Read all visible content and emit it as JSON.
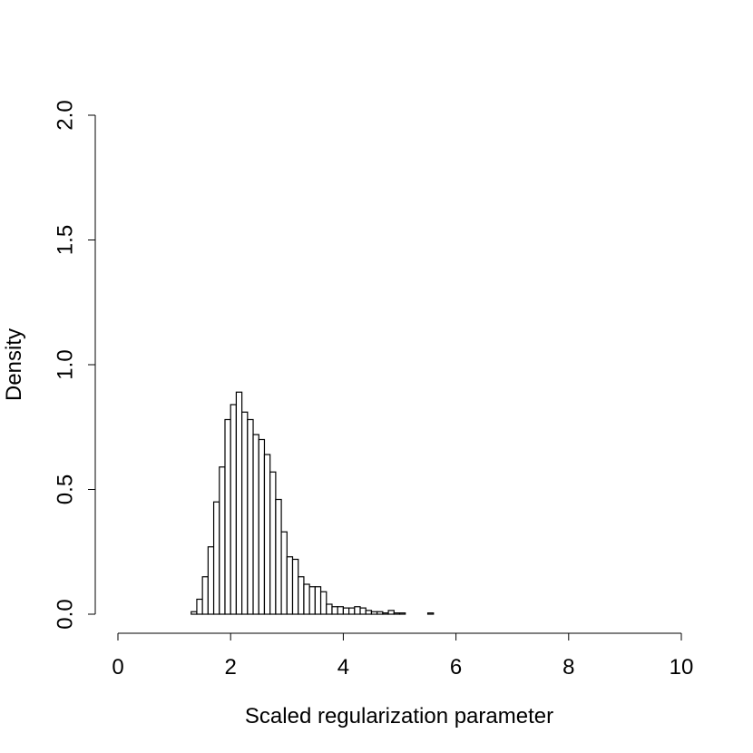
{
  "chart_data": {
    "type": "histogram",
    "x_label": "Scaled regularization parameter",
    "y_label": "Density",
    "bins": [
      0,
      0.1,
      0.2,
      0.3,
      0.4,
      0.5,
      0.6,
      0.7,
      0.8,
      0.9,
      1,
      1.1,
      1.2,
      1.3,
      1.4,
      1.5,
      1.6,
      1.7,
      1.8,
      1.9,
      2,
      2.1,
      2.2,
      2.3,
      2.4,
      2.5,
      2.6,
      2.7,
      2.8,
      2.9,
      3,
      3.1,
      3.2,
      3.3,
      3.4,
      3.5,
      3.6,
      3.7,
      3.8,
      3.9,
      4,
      4.1,
      4.2,
      4.3,
      4.4,
      4.5,
      4.6,
      4.7,
      4.8,
      4.9,
      5,
      5.1,
      5.2,
      5.3,
      5.4,
      5.5,
      5.6,
      5.7,
      5.8,
      5.9,
      6,
      6.1,
      6.2,
      6.3,
      6.4,
      6.5,
      6.6,
      6.7,
      6.8,
      6.9,
      7,
      7.1,
      7.2,
      7.3,
      7.4,
      7.5,
      7.6,
      7.7,
      7.8,
      7.9,
      8,
      8.1,
      8.2,
      8.3,
      8.4,
      8.5,
      8.6,
      8.7,
      8.8,
      8.9,
      9,
      9.1,
      9.2,
      9.3,
      9.4,
      9.5,
      9.6,
      9.7,
      9.8,
      9.9,
      10
    ],
    "values": [
      0,
      0,
      0,
      0,
      0,
      0,
      0,
      0,
      0,
      0,
      0,
      0,
      0,
      0.01,
      0.06,
      0.15,
      0.27,
      0.45,
      0.59,
      0.78,
      0.84,
      0.89,
      0.81,
      0.78,
      0.72,
      0.7,
      0.64,
      0.57,
      0.46,
      0.33,
      0.23,
      0.22,
      0.15,
      0.12,
      0.11,
      0.11,
      0.09,
      0.04,
      0.03,
      0.03,
      0.025,
      0.025,
      0.03,
      0.025,
      0.015,
      0.01,
      0.01,
      0.005,
      0.015,
      0.005,
      0.005,
      0,
      0,
      0,
      0,
      0.005,
      0,
      0,
      0,
      0,
      0,
      0,
      0,
      0,
      0,
      0,
      0,
      0,
      0,
      0,
      0,
      0,
      0,
      0,
      0,
      0,
      0,
      0,
      0,
      0,
      0,
      0,
      0,
      0,
      0,
      0,
      0,
      0,
      0,
      0,
      0,
      0,
      0,
      0,
      0,
      0,
      0,
      0,
      0,
      0
    ],
    "color": "#ffffff",
    "xlim": [
      0,
      10
    ],
    "xticks": [
      0,
      2,
      4,
      6,
      8,
      10
    ],
    "ylim": [
      0,
      2
    ],
    "yticks": [
      {
        "value": 0,
        "label": "0.0"
      },
      0.5,
      {
        "value": 1,
        "label": "1.0"
      },
      1.5,
      {
        "value": 2,
        "label": "2.0"
      }
    ]
  }
}
